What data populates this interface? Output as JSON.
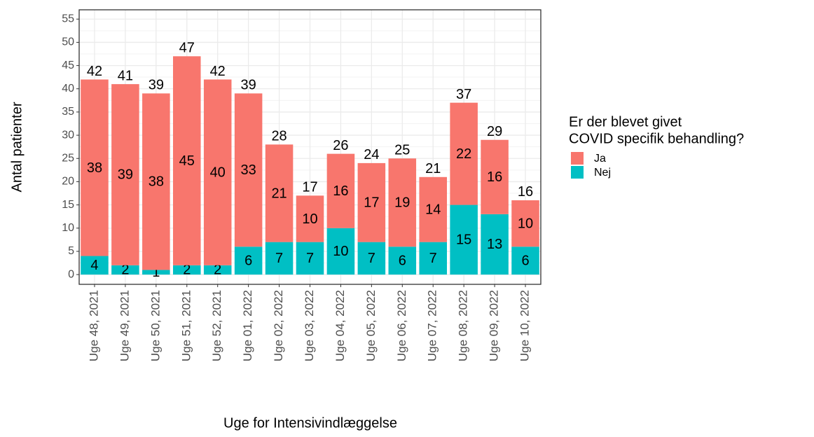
{
  "chart_data": {
    "type": "stacked_bar",
    "x_label": "Uge for Intensivindlæggelse",
    "y_label": "Antal patienter",
    "legend_title": [
      "Er der blevet givet",
      "COVID specifik behandling?"
    ],
    "categories": [
      "Uge 48, 2021",
      "Uge 49, 2021",
      "Uge 50, 2021",
      "Uge 51, 2021",
      "Uge 52, 2021",
      "Uge 01, 2022",
      "Uge 02, 2022",
      "Uge 03, 2022",
      "Uge 04, 2022",
      "Uge 05, 2022",
      "Uge 06, 2022",
      "Uge 07, 2022",
      "Uge 08, 2022",
      "Uge 09, 2022",
      "Uge 10, 2022"
    ],
    "series": [
      {
        "name": "Ja",
        "color": "#F8766D",
        "values": [
          38,
          39,
          38,
          45,
          40,
          33,
          21,
          10,
          16,
          17,
          19,
          14,
          22,
          16,
          10
        ]
      },
      {
        "name": "Nej",
        "color": "#00BFC4",
        "values": [
          4,
          2,
          1,
          2,
          2,
          6,
          7,
          7,
          10,
          7,
          6,
          7,
          15,
          13,
          6
        ]
      }
    ],
    "totals": [
      42,
      41,
      39,
      47,
      42,
      39,
      28,
      17,
      26,
      24,
      25,
      21,
      37,
      29,
      16
    ],
    "ylim": [
      -2.1,
      57
    ],
    "yticks": [
      0,
      5,
      10,
      15,
      20,
      25,
      30,
      35,
      40,
      45,
      50,
      55
    ],
    "grid": true
  }
}
